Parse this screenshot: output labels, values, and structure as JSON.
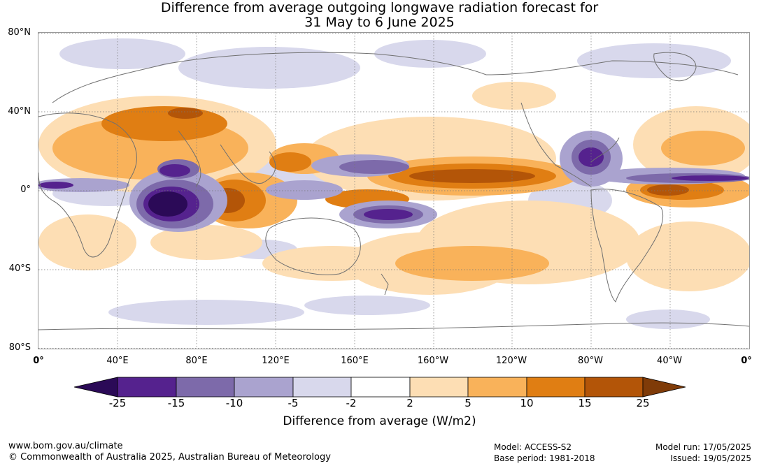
{
  "title_line1": "Difference from average outgoing longwave radiation forecast for",
  "title_line2": "31 May to 6 June 2025",
  "map": {
    "lat_labels": [
      "80°N",
      "40°N",
      "0°",
      "40°S",
      "80°S"
    ],
    "lon_labels": [
      "0°",
      "40°E",
      "80°E",
      "120°E",
      "160°E",
      "160°W",
      "120°W",
      "80°W",
      "40°W",
      "0°"
    ],
    "gridlines": true
  },
  "colorbar": {
    "ticks": [
      "-25",
      "-15",
      "-10",
      "-5",
      "-2",
      "2",
      "5",
      "10",
      "15",
      "25"
    ],
    "colors": [
      "#2b0a57",
      "#55228e",
      "#7d6aaa",
      "#aaa3cf",
      "#d8d8ec",
      "#ffffff",
      "#fddeb4",
      "#f9b25a",
      "#e07e13",
      "#b35508",
      "#7f3b08"
    ],
    "label": "Difference from average (W/m2)"
  },
  "footer": {
    "website": "www.bom.gov.au/climate",
    "copyright": "© Commonwealth of Australia 2025, Australian Bureau of Meteorology",
    "model": "Model: ACCESS-S2",
    "base_period": "Base period: 1981-2018",
    "model_run": "Model run: 17/05/2025",
    "issued": "Issued: 19/05/2025"
  }
}
